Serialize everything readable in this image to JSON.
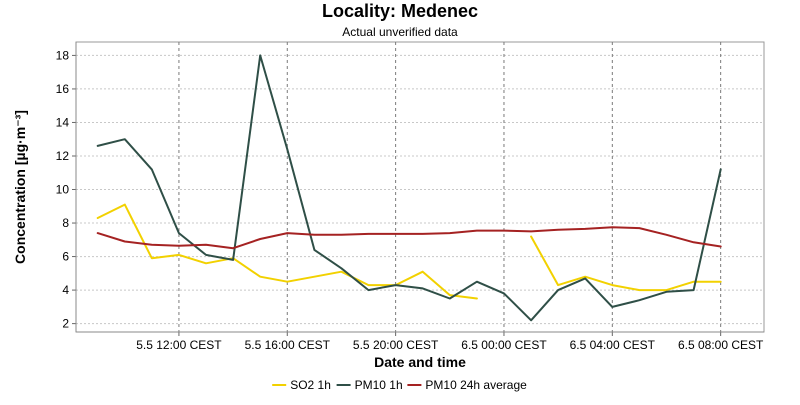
{
  "chart_data": {
    "type": "line",
    "title": "Locality: Medenec",
    "subtitle": "Actual unverified data",
    "xlabel": "Date and time",
    "ylabel": "Concentration [µg·m⁻³]",
    "ylim": [
      1.5,
      18.8
    ],
    "yticks": [
      2,
      4,
      6,
      8,
      10,
      12,
      14,
      16,
      18
    ],
    "xlim": [
      8.2,
      33.6
    ],
    "xticks": [
      {
        "x": 12,
        "label": "5.5 12:00 CEST"
      },
      {
        "x": 16,
        "label": "5.5 16:00 CEST"
      },
      {
        "x": 20,
        "label": "5.5 20:00 CEST"
      },
      {
        "x": 24,
        "label": "6.5 00:00 CEST"
      },
      {
        "x": 28,
        "label": "6.5 04:00 CEST"
      },
      {
        "x": 32,
        "label": "6.5 08:00 CEST"
      }
    ],
    "x_hours": [
      9,
      10,
      11,
      12,
      13,
      14,
      15,
      16,
      17,
      18,
      19,
      20,
      21,
      22,
      23,
      24,
      25,
      26,
      27,
      28,
      29,
      30,
      31,
      32
    ],
    "series": [
      {
        "name": "SO2 1h",
        "color": "#f2d100",
        "values": [
          8.3,
          9.1,
          5.9,
          6.1,
          5.6,
          5.9,
          4.8,
          4.5,
          4.8,
          5.1,
          4.3,
          4.3,
          5.1,
          3.7,
          3.5,
          null,
          7.2,
          4.3,
          4.8,
          4.3,
          4.0,
          4.0,
          4.5,
          4.5
        ]
      },
      {
        "name": "PM10 1h",
        "color": "#2f4f47",
        "values": [
          12.6,
          13.0,
          11.2,
          7.4,
          6.1,
          5.8,
          18.0,
          12.4,
          6.4,
          5.3,
          4.0,
          4.3,
          4.1,
          3.5,
          4.5,
          3.8,
          2.2,
          4.0,
          4.7,
          3.0,
          3.4,
          3.9,
          4.0,
          11.2
        ]
      },
      {
        "name": "PM10 24h average",
        "color": "#a52222",
        "values": [
          7.4,
          6.9,
          6.7,
          6.65,
          6.7,
          6.5,
          7.05,
          7.4,
          7.3,
          7.3,
          7.35,
          7.35,
          7.35,
          7.4,
          7.55,
          7.55,
          7.5,
          7.6,
          7.65,
          7.75,
          7.7,
          7.3,
          6.85,
          6.6
        ]
      }
    ],
    "grid": true,
    "legend_position": "bottom-center"
  }
}
